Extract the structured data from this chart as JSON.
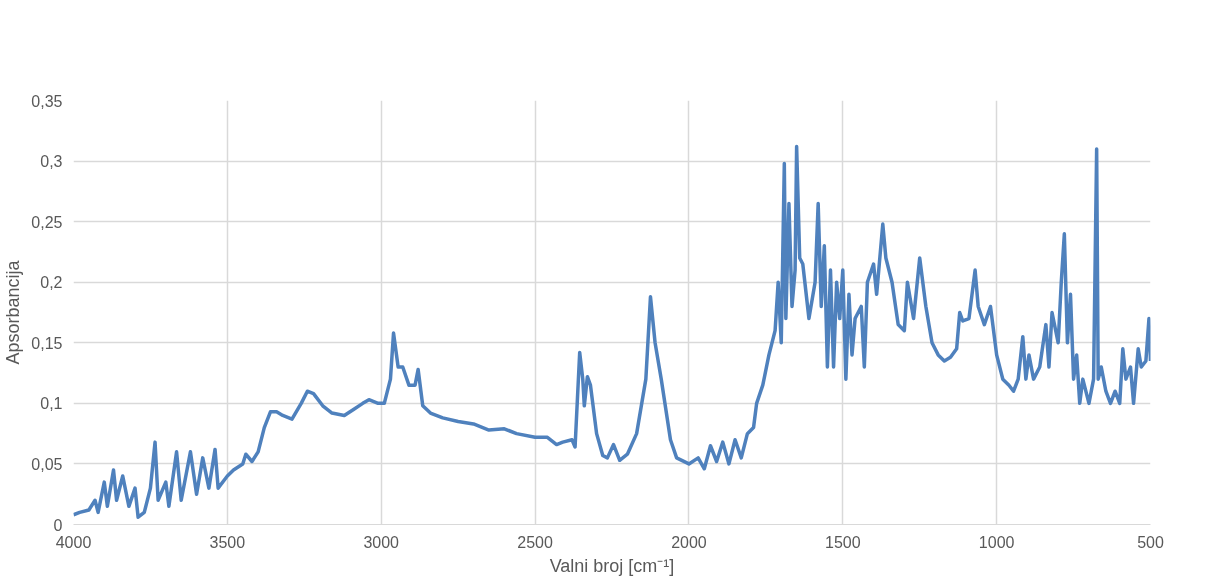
{
  "chart_data": {
    "type": "line",
    "xlabel": "Valni broj [cm⁻¹]",
    "ylabel": "Apsorbancija",
    "xlim": [
      4000,
      500
    ],
    "xticks": [
      4000,
      3500,
      3000,
      2500,
      2000,
      1500,
      1000,
      500
    ],
    "ylim": [
      0,
      0.35
    ],
    "yticks": [
      0,
      {
        "value": 0.05,
        "label": "0,05"
      },
      {
        "value": 0.1,
        "label": "0,1"
      },
      {
        "value": 0.15,
        "label": "0,15"
      },
      {
        "value": 0.2,
        "label": "0,2"
      },
      {
        "value": 0.25,
        "label": "0,25"
      },
      {
        "value": 0.3,
        "label": "0,3"
      },
      {
        "value": 0.35,
        "label": "0,35"
      }
    ],
    "grid": true,
    "marker": "none",
    "line_style": "solid",
    "series": [
      {
        "color": "#4f81bd",
        "x": [
          4000,
          3980,
          3950,
          3930,
          3920,
          3900,
          3890,
          3870,
          3860,
          3840,
          3820,
          3800,
          3790,
          3770,
          3750,
          3735,
          3725,
          3700,
          3690,
          3665,
          3650,
          3620,
          3600,
          3580,
          3560,
          3540,
          3530,
          3500,
          3480,
          3450,
          3440,
          3420,
          3400,
          3380,
          3360,
          3340,
          3320,
          3290,
          3260,
          3240,
          3220,
          3190,
          3160,
          3120,
          3090,
          3060,
          3040,
          3010,
          2990,
          2970,
          2960,
          2945,
          2930,
          2910,
          2890,
          2880,
          2865,
          2840,
          2800,
          2750,
          2700,
          2650,
          2600,
          2560,
          2500,
          2460,
          2430,
          2410,
          2380,
          2370,
          2355,
          2345,
          2340,
          2330,
          2320,
          2300,
          2280,
          2265,
          2245,
          2225,
          2200,
          2170,
          2140,
          2125,
          2110,
          2090,
          2060,
          2040,
          2000,
          1970,
          1950,
          1930,
          1910,
          1890,
          1870,
          1850,
          1830,
          1810,
          1790,
          1780,
          1760,
          1740,
          1720,
          1710,
          1700,
          1690,
          1685,
          1675,
          1665,
          1655,
          1650,
          1640,
          1630,
          1610,
          1590,
          1580,
          1570,
          1560,
          1550,
          1540,
          1530,
          1520,
          1510,
          1500,
          1490,
          1480,
          1470,
          1460,
          1440,
          1430,
          1420,
          1400,
          1390,
          1370,
          1360,
          1340,
          1320,
          1300,
          1290,
          1270,
          1250,
          1230,
          1210,
          1190,
          1170,
          1150,
          1130,
          1120,
          1110,
          1090,
          1070,
          1060,
          1040,
          1020,
          1000,
          980,
          960,
          945,
          930,
          915,
          905,
          895,
          880,
          860,
          840,
          830,
          820,
          800,
          790,
          780,
          770,
          760,
          750,
          740,
          730,
          720,
          700,
          685,
          675,
          670,
          660,
          645,
          630,
          615,
          600,
          590,
          580,
          565,
          555,
          540,
          530,
          515,
          505,
          500
        ],
        "values": [
          0.008,
          0.01,
          0.012,
          0.02,
          0.01,
          0.035,
          0.015,
          0.045,
          0.02,
          0.04,
          0.015,
          0.03,
          0.006,
          0.01,
          0.03,
          0.068,
          0.02,
          0.035,
          0.015,
          0.06,
          0.02,
          0.06,
          0.025,
          0.055,
          0.03,
          0.062,
          0.03,
          0.04,
          0.045,
          0.05,
          0.058,
          0.052,
          0.06,
          0.08,
          0.093,
          0.093,
          0.09,
          0.087,
          0.1,
          0.11,
          0.108,
          0.098,
          0.092,
          0.09,
          0.095,
          0.1,
          0.103,
          0.1,
          0.1,
          0.12,
          0.158,
          0.13,
          0.13,
          0.115,
          0.115,
          0.128,
          0.098,
          0.092,
          0.088,
          0.085,
          0.083,
          0.078,
          0.079,
          0.075,
          0.072,
          0.072,
          0.066,
          0.068,
          0.07,
          0.064,
          0.142,
          0.12,
          0.098,
          0.122,
          0.115,
          0.075,
          0.057,
          0.055,
          0.066,
          0.053,
          0.058,
          0.075,
          0.12,
          0.188,
          0.15,
          0.12,
          0.07,
          0.055,
          0.05,
          0.055,
          0.046,
          0.065,
          0.052,
          0.068,
          0.05,
          0.07,
          0.055,
          0.075,
          0.08,
          0.1,
          0.115,
          0.14,
          0.16,
          0.2,
          0.15,
          0.298,
          0.17,
          0.265,
          0.18,
          0.21,
          0.312,
          0.22,
          0.215,
          0.17,
          0.2,
          0.265,
          0.18,
          0.23,
          0.13,
          0.21,
          0.13,
          0.2,
          0.17,
          0.21,
          0.12,
          0.19,
          0.14,
          0.17,
          0.18,
          0.13,
          0.2,
          0.215,
          0.19,
          0.248,
          0.22,
          0.2,
          0.165,
          0.16,
          0.2,
          0.17,
          0.22,
          0.18,
          0.15,
          0.14,
          0.135,
          0.138,
          0.145,
          0.175,
          0.168,
          0.17,
          0.21,
          0.18,
          0.165,
          0.18,
          0.14,
          0.12,
          0.115,
          0.11,
          0.12,
          0.155,
          0.12,
          0.14,
          0.12,
          0.13,
          0.165,
          0.13,
          0.175,
          0.15,
          0.2,
          0.24,
          0.15,
          0.19,
          0.12,
          0.14,
          0.1,
          0.12,
          0.1,
          0.12,
          0.31,
          0.12,
          0.13,
          0.11,
          0.1,
          0.11,
          0.1,
          0.145,
          0.12,
          0.13,
          0.1,
          0.145,
          0.13,
          0.135,
          0.17,
          0.135
        ]
      }
    ]
  }
}
